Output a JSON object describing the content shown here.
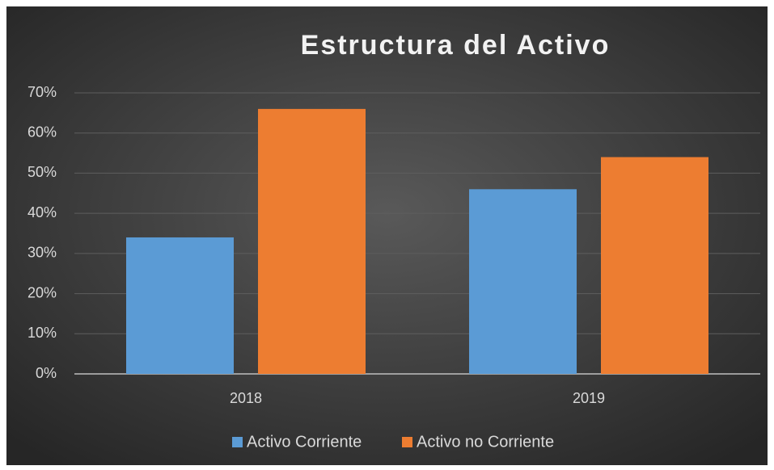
{
  "chart_data": {
    "type": "bar",
    "title": "Estructura del Activo",
    "categories": [
      "2018",
      "2019"
    ],
    "series": [
      {
        "name": "Activo Corriente",
        "color": "#5b9bd5",
        "values": [
          34,
          46
        ]
      },
      {
        "name": "Activo no Corriente",
        "color": "#ed7d31",
        "values": [
          66,
          54
        ]
      }
    ],
    "ylim": [
      0,
      70
    ],
    "yticks": [
      {
        "value": 0,
        "label": "0%"
      },
      {
        "value": 10,
        "label": "10%"
      },
      {
        "value": 20,
        "label": "20%"
      },
      {
        "value": 30,
        "label": "30%"
      },
      {
        "value": 40,
        "label": "40%"
      },
      {
        "value": 50,
        "label": "50%"
      },
      {
        "value": 60,
        "label": "60%"
      },
      {
        "value": 70,
        "label": "70%"
      }
    ],
    "grid": true,
    "legend": "bottom"
  }
}
